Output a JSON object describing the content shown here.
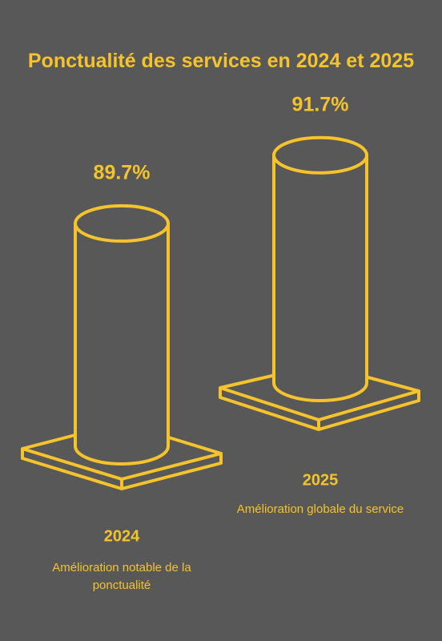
{
  "chart_data": {
    "type": "cylinder",
    "title": "Ponctualité des services en 2024 et 2025",
    "categories": [
      "2024",
      "2025"
    ],
    "values": [
      89.7,
      91.7
    ],
    "value_labels": [
      "89.7%",
      "91.7%"
    ],
    "descriptions": [
      "Amélioration notable de la ponctualité",
      "Amélioration globale du service"
    ],
    "color": "#f5c32c"
  }
}
